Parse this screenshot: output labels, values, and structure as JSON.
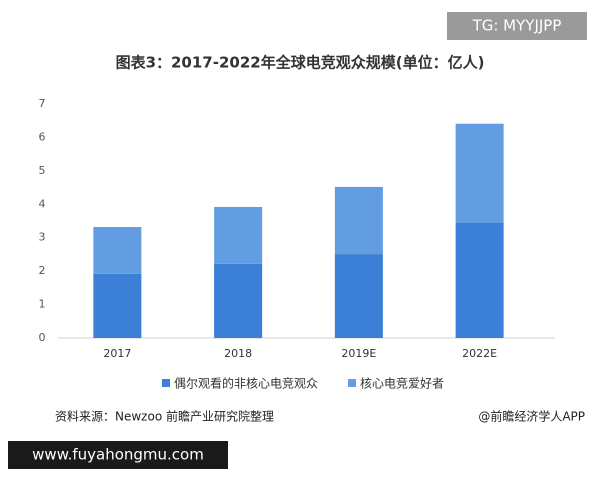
{
  "watermark": "TG: MYYJJPP",
  "chart_data": {
    "type": "bar",
    "stacked": true,
    "title": "图表3：2017-2022年全球电竞观众规模(单位：亿人)",
    "categories": [
      "2017",
      "2018",
      "2019E",
      "2022E"
    ],
    "series": [
      {
        "name": "偶尔观看的非核心电竞观众",
        "color": "#3b7fd6",
        "values": [
          1.92,
          2.22,
          2.51,
          3.44
        ]
      },
      {
        "name": "核心电竞爱好者",
        "color": "#629de2",
        "values": [
          1.4,
          1.7,
          2.01,
          2.97
        ]
      }
    ],
    "ylim": [
      0,
      7
    ],
    "yticks": [
      0,
      1,
      2,
      3,
      4,
      5,
      6,
      7
    ],
    "grid": false,
    "legend": "bottom"
  },
  "source": "资料来源：Newzoo 前瞻产业研究院整理",
  "credit": "@前瞻经济学人APP",
  "website": "www.fuyahongmu.com"
}
